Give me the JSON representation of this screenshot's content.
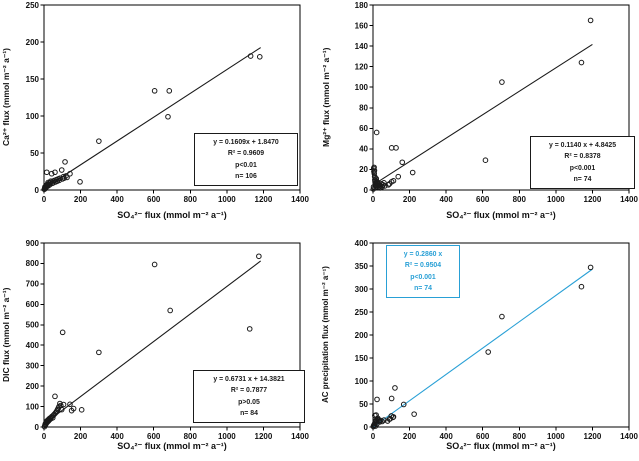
{
  "figure": {
    "background": "#ffffff",
    "text_color": "#111111",
    "accent_blue": "#29A0D6"
  },
  "chart_data": [
    {
      "id": "ca-vs-so4",
      "type": "scatter",
      "title": "",
      "xlabel": "SO₄²⁻ flux (mmol m⁻² a⁻¹)",
      "ylabel": "Ca²⁺ flux (mmol m⁻² a⁻¹)",
      "xlim": [
        0,
        1400
      ],
      "ylim": [
        0,
        250
      ],
      "xticks": [
        0,
        200,
        400,
        600,
        800,
        1000,
        1200,
        1400
      ],
      "yticks": [
        0,
        50,
        100,
        150,
        200,
        250
      ],
      "grid": false,
      "marker": "open-circle",
      "accent": "#1a1a1a",
      "trendline": {
        "slope": 0.1609,
        "intercept": 1.847,
        "x_start": 0,
        "x_end": 1185
      },
      "stats": {
        "equation": "y = 0.1609x + 1.8470",
        "r_squared": "R² = 0.9609",
        "p_value": "p<0.01",
        "n": "n= 106"
      },
      "points": [
        [
          2,
          1
        ],
        [
          4,
          2
        ],
        [
          5,
          4
        ],
        [
          7,
          2
        ],
        [
          8,
          5
        ],
        [
          10,
          3
        ],
        [
          11,
          6
        ],
        [
          13,
          4
        ],
        [
          15,
          24
        ],
        [
          16,
          7
        ],
        [
          18,
          5
        ],
        [
          20,
          8
        ],
        [
          22,
          10
        ],
        [
          25,
          6
        ],
        [
          28,
          9
        ],
        [
          31,
          7
        ],
        [
          34,
          10
        ],
        [
          37,
          12
        ],
        [
          42,
          22
        ],
        [
          45,
          9
        ],
        [
          49,
          12
        ],
        [
          53,
          10
        ],
        [
          57,
          13
        ],
        [
          60,
          24
        ],
        [
          64,
          11
        ],
        [
          68,
          14
        ],
        [
          73,
          12
        ],
        [
          78,
          15
        ],
        [
          83,
          13
        ],
        [
          88,
          16
        ],
        [
          97,
          27
        ],
        [
          101,
          15
        ],
        [
          106,
          18
        ],
        [
          110,
          16
        ],
        [
          115,
          38
        ],
        [
          120,
          19
        ],
        [
          126,
          17
        ],
        [
          142,
          22
        ],
        [
          197,
          11
        ],
        [
          300,
          66
        ],
        [
          605,
          134
        ],
        [
          678,
          99
        ],
        [
          685,
          134
        ],
        [
          1130,
          181
        ],
        [
          1180,
          180
        ]
      ]
    },
    {
      "id": "mg-vs-so4",
      "type": "scatter",
      "title": "",
      "xlabel": "SO₄²⁻ flux (mmol m⁻² a⁻¹)",
      "ylabel": "Mg²⁺ flux (mmol m⁻² a⁻¹)",
      "xlim": [
        0,
        1400
      ],
      "ylim": [
        0,
        180
      ],
      "xticks": [
        0,
        200,
        400,
        600,
        800,
        1000,
        1200,
        1400
      ],
      "yticks": [
        0,
        20,
        40,
        60,
        80,
        100,
        120,
        140,
        160,
        180
      ],
      "grid": false,
      "marker": "open-circle",
      "accent": "#1a1a1a",
      "trendline": {
        "slope": 0.114,
        "intercept": 4.8425,
        "x_start": 0,
        "x_end": 1200
      },
      "stats": {
        "equation": "y = 0.1140 x + 4.8425",
        "r_squared": "R² = 0.8378",
        "p_value": "p<0.001",
        "n": "n= 74"
      },
      "points": [
        [
          2,
          1
        ],
        [
          3,
          3
        ],
        [
          4,
          21
        ],
        [
          5,
          18
        ],
        [
          6,
          22
        ],
        [
          7,
          16
        ],
        [
          8,
          19
        ],
        [
          9,
          13
        ],
        [
          10,
          10
        ],
        [
          11,
          8
        ],
        [
          12,
          12
        ],
        [
          13,
          6
        ],
        [
          14,
          9
        ],
        [
          15,
          5
        ],
        [
          16,
          7
        ],
        [
          17,
          4
        ],
        [
          18,
          11
        ],
        [
          19,
          3
        ],
        [
          20,
          56
        ],
        [
          22,
          8
        ],
        [
          24,
          5
        ],
        [
          26,
          7
        ],
        [
          28,
          4
        ],
        [
          30,
          6
        ],
        [
          33,
          3
        ],
        [
          36,
          5
        ],
        [
          39,
          2
        ],
        [
          42,
          4
        ],
        [
          46,
          6
        ],
        [
          50,
          3
        ],
        [
          55,
          5
        ],
        [
          60,
          7
        ],
        [
          65,
          4
        ],
        [
          84,
          5
        ],
        [
          90,
          6
        ],
        [
          102,
          41
        ],
        [
          102,
          8
        ],
        [
          112,
          9
        ],
        [
          126,
          41
        ],
        [
          138,
          13
        ],
        [
          160,
          27
        ],
        [
          217,
          17
        ],
        [
          615,
          29
        ],
        [
          705,
          105
        ],
        [
          1140,
          124
        ],
        [
          1190,
          165
        ]
      ]
    },
    {
      "id": "dic-vs-so4",
      "type": "scatter",
      "title": "",
      "xlabel": "SO₄²⁻ flux (mmol m⁻² a⁻¹)",
      "ylabel": "DIC flux (mmol m⁻² a⁻¹)",
      "xlim": [
        0,
        1400
      ],
      "ylim": [
        0,
        900
      ],
      "xticks": [
        0,
        200,
        400,
        600,
        800,
        1000,
        1200,
        1400
      ],
      "yticks": [
        0,
        100,
        200,
        300,
        400,
        500,
        600,
        700,
        800,
        900
      ],
      "grid": false,
      "marker": "open-circle",
      "accent": "#1a1a1a",
      "trendline": {
        "slope": 0.6731,
        "intercept": 14.3821,
        "x_start": 0,
        "x_end": 1185
      },
      "stats": {
        "equation": "y = 0.6731 x + 14.3821",
        "r_squared": "R² = 0.7877",
        "p_value": "p>0.05",
        "n": "n= 84"
      },
      "points": [
        [
          3,
          2
        ],
        [
          5,
          8
        ],
        [
          7,
          15
        ],
        [
          9,
          12
        ],
        [
          11,
          22
        ],
        [
          13,
          18
        ],
        [
          15,
          28
        ],
        [
          17,
          24
        ],
        [
          19,
          32
        ],
        [
          21,
          26
        ],
        [
          23,
          35
        ],
        [
          25,
          30
        ],
        [
          28,
          40
        ],
        [
          31,
          36
        ],
        [
          34,
          44
        ],
        [
          37,
          40
        ],
        [
          40,
          48
        ],
        [
          44,
          52
        ],
        [
          48,
          45
        ],
        [
          52,
          58
        ],
        [
          56,
          62
        ],
        [
          60,
          150
        ],
        [
          62,
          68
        ],
        [
          66,
          72
        ],
        [
          70,
          78
        ],
        [
          74,
          85
        ],
        [
          78,
          92
        ],
        [
          82,
          100
        ],
        [
          87,
          115
        ],
        [
          92,
          105
        ],
        [
          97,
          85
        ],
        [
          102,
          463
        ],
        [
          107,
          110
        ],
        [
          142,
          111
        ],
        [
          151,
          80
        ],
        [
          162,
          90
        ],
        [
          206,
          84
        ],
        [
          300,
          365
        ],
        [
          605,
          795
        ],
        [
          690,
          570
        ],
        [
          1125,
          480
        ],
        [
          1175,
          835
        ]
      ]
    },
    {
      "id": "ac-precip-vs-so4",
      "type": "scatter",
      "title": "",
      "xlabel": "SO₄²⁻ flux (mmol m⁻² a⁻¹)",
      "ylabel": "AC precipitation flux (mmol m⁻² a⁻¹)",
      "xlim": [
        0,
        1400
      ],
      "ylim": [
        0,
        400
      ],
      "xticks": [
        0,
        200,
        400,
        600,
        800,
        1000,
        1200,
        1400
      ],
      "yticks": [
        0,
        50,
        100,
        150,
        200,
        250,
        300,
        350,
        400
      ],
      "grid": false,
      "marker": "open-circle",
      "accent": "#29A0D6",
      "trendline": {
        "slope": 0.286,
        "intercept": 0,
        "x_start": 0,
        "x_end": 1200
      },
      "stats": {
        "equation": "y = 0.2860 x",
        "r_squared": "R² = 0.9504",
        "p_value": "p<0.001",
        "n": "n= 74"
      },
      "points": [
        [
          2,
          1
        ],
        [
          4,
          3
        ],
        [
          6,
          5
        ],
        [
          8,
          4
        ],
        [
          10,
          8
        ],
        [
          10,
          25
        ],
        [
          12,
          13
        ],
        [
          14,
          2
        ],
        [
          16,
          14
        ],
        [
          17,
          26
        ],
        [
          19,
          15
        ],
        [
          20,
          6
        ],
        [
          22,
          60
        ],
        [
          23,
          17
        ],
        [
          26,
          19
        ],
        [
          29,
          16
        ],
        [
          33,
          13
        ],
        [
          37,
          11
        ],
        [
          42,
          14
        ],
        [
          50,
          12
        ],
        [
          60,
          15
        ],
        [
          80,
          13
        ],
        [
          90,
          17
        ],
        [
          94,
          18
        ],
        [
          100,
          24
        ],
        [
          102,
          62
        ],
        [
          109,
          21
        ],
        [
          112,
          22
        ],
        [
          120,
          85
        ],
        [
          168,
          49
        ],
        [
          225,
          28
        ],
        [
          630,
          163
        ],
        [
          705,
          240
        ],
        [
          1140,
          305
        ],
        [
          1190,
          347
        ]
      ]
    }
  ]
}
